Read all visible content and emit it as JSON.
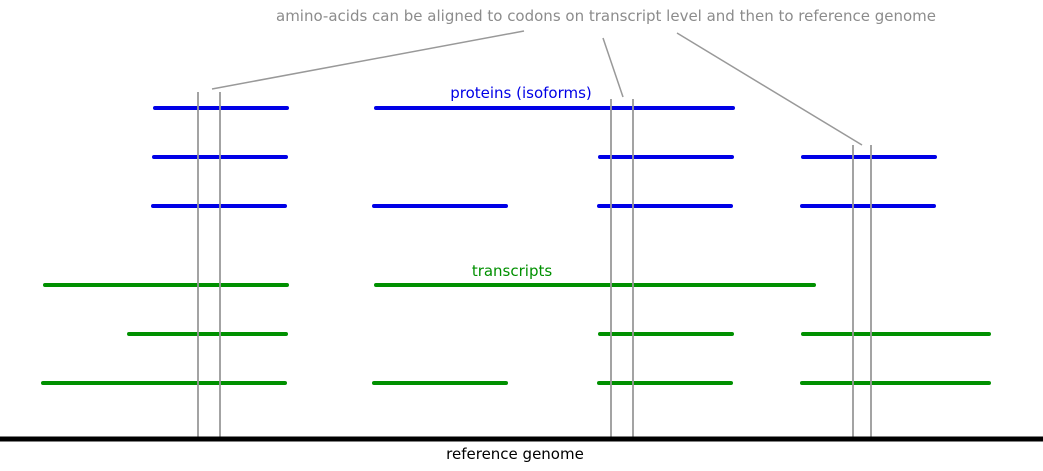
{
  "annotation": "amino-acids can be aligned to codons on transcript level and then to reference genome",
  "proteins_label": "proteins (isoforms)",
  "transcripts_label": "transcripts",
  "genome_label": "reference genome",
  "colors": {
    "protein": "#0000e6",
    "transcript": "#009000",
    "guide": "#999999",
    "annotation_text": "#8c8c8c",
    "genome": "#000000"
  }
}
